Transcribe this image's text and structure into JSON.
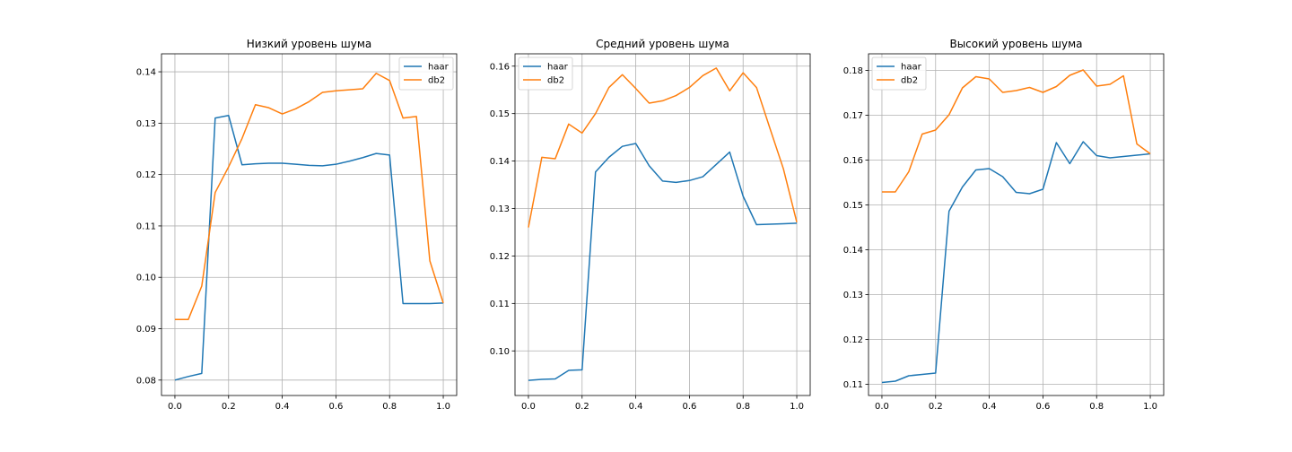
{
  "colors": {
    "haar": "#1f77b4",
    "db2": "#ff7f0e",
    "grid": "#b0b0b0",
    "axes": "#000000"
  },
  "chart_data": [
    {
      "type": "line",
      "title": "Низкий уровень шума",
      "xlabel": "",
      "ylabel": "",
      "xlim": [
        -0.05,
        1.05
      ],
      "ylim": [
        0.077,
        0.1435
      ],
      "xticks": [
        0.0,
        0.2,
        0.4,
        0.6,
        0.8,
        1.0
      ],
      "xtick_labels": [
        "0.0",
        "0.2",
        "0.4",
        "0.6",
        "0.8",
        "1.0"
      ],
      "yticks": [
        0.08,
        0.09,
        0.1,
        0.11,
        0.12,
        0.13,
        0.14
      ],
      "ytick_labels": [
        "0.08",
        "0.09",
        "0.10",
        "0.11",
        "0.12",
        "0.13",
        "0.14"
      ],
      "grid": true,
      "legend_position": "upper-right",
      "x": [
        0.0,
        0.05,
        0.1,
        0.15,
        0.2,
        0.25,
        0.3,
        0.35,
        0.4,
        0.45,
        0.5,
        0.55,
        0.6,
        0.65,
        0.7,
        0.75,
        0.8,
        0.85,
        0.9,
        0.95,
        1.0
      ],
      "series": [
        {
          "name": "haar",
          "values": [
            0.08,
            0.0807,
            0.0813,
            0.131,
            0.1315,
            0.1219,
            0.1221,
            0.1222,
            0.1222,
            0.122,
            0.1218,
            0.1217,
            0.122,
            0.1226,
            0.1233,
            0.1241,
            0.1238,
            0.0949,
            0.0949,
            0.0949,
            0.095
          ]
        },
        {
          "name": "db2",
          "values": [
            0.0918,
            0.0918,
            0.0983,
            0.1165,
            0.1215,
            0.127,
            0.1336,
            0.133,
            0.1318,
            0.1328,
            0.1342,
            0.136,
            0.1363,
            0.1365,
            0.1367,
            0.1397,
            0.1383,
            0.131,
            0.1313,
            0.1032,
            0.095
          ]
        }
      ]
    },
    {
      "type": "line",
      "title": "Средний уровень шума",
      "xlabel": "",
      "ylabel": "",
      "xlim": [
        -0.05,
        1.05
      ],
      "ylim": [
        0.0906,
        0.1626
      ],
      "xticks": [
        0.0,
        0.2,
        0.4,
        0.6,
        0.8,
        1.0
      ],
      "xtick_labels": [
        "0.0",
        "0.2",
        "0.4",
        "0.6",
        "0.8",
        "1.0"
      ],
      "yticks": [
        0.1,
        0.11,
        0.12,
        0.13,
        0.14,
        0.15,
        0.16
      ],
      "ytick_labels": [
        "0.10",
        "0.11",
        "0.12",
        "0.13",
        "0.14",
        "0.15",
        "0.16"
      ],
      "grid": true,
      "legend_position": "upper-left",
      "x": [
        0.0,
        0.05,
        0.1,
        0.15,
        0.2,
        0.25,
        0.3,
        0.35,
        0.4,
        0.45,
        0.5,
        0.55,
        0.6,
        0.65,
        0.7,
        0.75,
        0.8,
        0.85,
        0.9,
        0.95,
        1.0
      ],
      "series": [
        {
          "name": "haar",
          "values": [
            0.0938,
            0.094,
            0.0941,
            0.0959,
            0.096,
            0.1377,
            0.1408,
            0.1431,
            0.1437,
            0.139,
            0.1358,
            0.1355,
            0.1359,
            0.1367,
            0.1393,
            0.1419,
            0.1326,
            0.1266,
            0.1267,
            0.1268,
            0.1269
          ]
        },
        {
          "name": "db2",
          "values": [
            0.126,
            0.1408,
            0.1405,
            0.1478,
            0.1459,
            0.15,
            0.1555,
            0.1582,
            0.1553,
            0.1522,
            0.1527,
            0.1538,
            0.1555,
            0.158,
            0.1596,
            0.1548,
            0.1586,
            0.1555,
            0.1469,
            0.1384,
            0.1271
          ]
        }
      ]
    },
    {
      "type": "line",
      "title": "Высокий уровень шума",
      "xlabel": "",
      "ylabel": "",
      "xlim": [
        -0.05,
        1.05
      ],
      "ylim": [
        0.1075,
        0.1837
      ],
      "xticks": [
        0.0,
        0.2,
        0.4,
        0.6,
        0.8,
        1.0
      ],
      "xtick_labels": [
        "0.0",
        "0.2",
        "0.4",
        "0.6",
        "0.8",
        "1.0"
      ],
      "yticks": [
        0.11,
        0.12,
        0.13,
        0.14,
        0.15,
        0.16,
        0.17,
        0.18
      ],
      "ytick_labels": [
        "0.11",
        "0.12",
        "0.13",
        "0.14",
        "0.15",
        "0.16",
        "0.17",
        "0.18"
      ],
      "grid": true,
      "legend_position": "upper-left",
      "x": [
        0.0,
        0.05,
        0.1,
        0.15,
        0.2,
        0.25,
        0.3,
        0.35,
        0.4,
        0.45,
        0.5,
        0.55,
        0.6,
        0.65,
        0.7,
        0.75,
        0.8,
        0.85,
        0.9,
        0.95,
        1.0
      ],
      "series": [
        {
          "name": "haar",
          "values": [
            0.1104,
            0.1107,
            0.1119,
            0.1122,
            0.1125,
            0.1486,
            0.154,
            0.1578,
            0.1581,
            0.1563,
            0.1528,
            0.1525,
            0.1535,
            0.1639,
            0.1592,
            0.1641,
            0.161,
            0.1605,
            0.1608,
            0.1611,
            0.1614
          ]
        },
        {
          "name": "db2",
          "values": [
            0.1529,
            0.1529,
            0.1574,
            0.1658,
            0.1667,
            0.1701,
            0.1761,
            0.1786,
            0.1781,
            0.1751,
            0.1755,
            0.1762,
            0.1751,
            0.1764,
            0.1789,
            0.1801,
            0.1765,
            0.1769,
            0.1788,
            0.1636,
            0.1614
          ]
        }
      ]
    }
  ]
}
